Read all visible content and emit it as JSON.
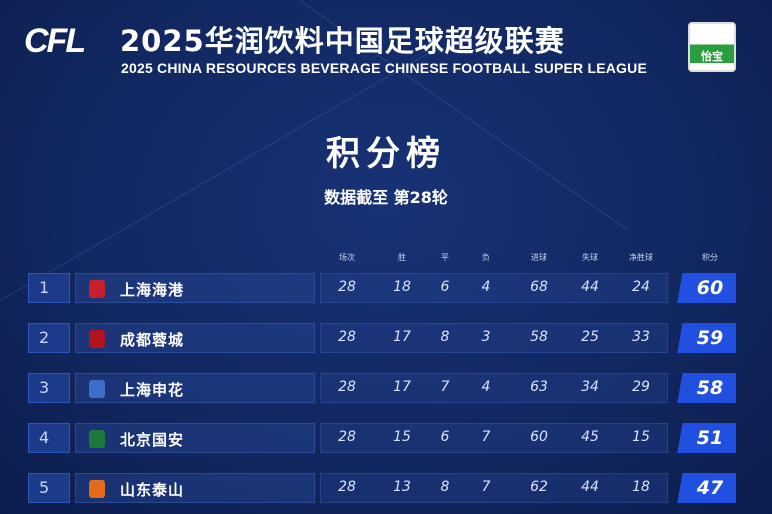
{
  "header": {
    "logo_text": "CFL",
    "title": "2025华润饮料中国足球超级联赛",
    "subtitle": "2025 CHINA RESOURCES BEVERAGE CHINESE FOOTBALL SUPER LEAGUE",
    "sponsor": "怡宝"
  },
  "page": {
    "heading": "积分榜",
    "as_of": "数据截至 第28轮"
  },
  "columns": [
    "场次",
    "胜",
    "平",
    "负",
    "进球",
    "失球",
    "净胜球",
    "积分"
  ],
  "rows": [
    {
      "rank": "1",
      "team": "上海海港",
      "crest_color": "#c8202a",
      "stats": [
        "28",
        "18",
        "6",
        "4",
        "68",
        "44",
        "24"
      ],
      "points": "60"
    },
    {
      "rank": "2",
      "team": "成都蓉城",
      "crest_color": "#b3121f",
      "stats": [
        "28",
        "17",
        "8",
        "3",
        "58",
        "25",
        "33"
      ],
      "points": "59"
    },
    {
      "rank": "3",
      "team": "上海申花",
      "crest_color": "#3d6fc9",
      "stats": [
        "28",
        "17",
        "7",
        "4",
        "63",
        "34",
        "29"
      ],
      "points": "58"
    },
    {
      "rank": "4",
      "team": "北京国安",
      "crest_color": "#1c7a3a",
      "stats": [
        "28",
        "15",
        "6",
        "7",
        "60",
        "45",
        "15"
      ],
      "points": "51"
    },
    {
      "rank": "5",
      "team": "山东泰山",
      "crest_color": "#e36b1a",
      "stats": [
        "28",
        "13",
        "8",
        "7",
        "62",
        "44",
        "18"
      ],
      "points": "47"
    }
  ]
}
